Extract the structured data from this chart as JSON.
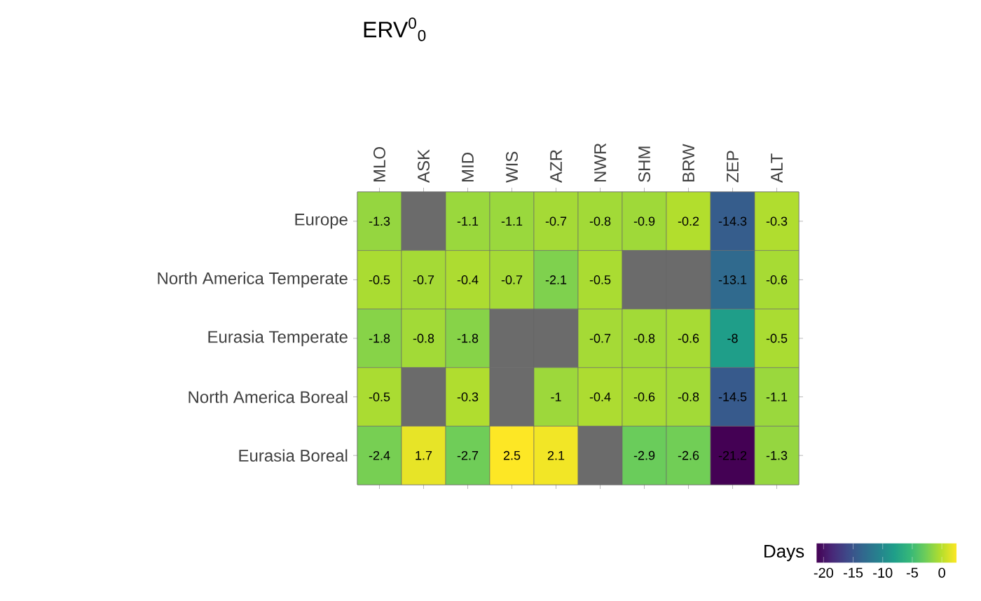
{
  "chart_data": {
    "type": "heatmap",
    "title": "ERV$^{0}$$_{0}$",
    "clabel": "Days",
    "categories": [
      "MLO",
      "ASK",
      "MID",
      "WIS",
      "AZR",
      "NWR",
      "SHM",
      "BRW",
      "ZEP",
      "ALT"
    ],
    "y_categories": [
      "Europe",
      "North America Temperate",
      "Eurasia Temperate",
      "North America Boreal",
      "Eurasia Boreal"
    ],
    "cells": [
      [
        -1.3,
        null,
        -1.1,
        -1.1,
        -0.7,
        -0.8,
        -0.9,
        -0.2,
        -14.3,
        -0.3
      ],
      [
        -0.5,
        -0.7,
        -0.4,
        -0.7,
        -2.1,
        -0.5,
        null,
        null,
        -13.1,
        -0.6
      ],
      [
        -1.8,
        -0.8,
        -1.8,
        null,
        null,
        -0.7,
        -0.8,
        -0.6,
        -8,
        -0.5
      ],
      [
        -0.5,
        null,
        -0.3,
        null,
        -1,
        -0.4,
        -0.6,
        -0.8,
        -14.5,
        -1.1
      ],
      [
        -2.4,
        1.7,
        -2.7,
        2.5,
        2.1,
        null,
        -2.9,
        -2.6,
        -21.2,
        -1.3
      ]
    ],
    "data_labels": true,
    "clim": [
      -21.2,
      2.5
    ],
    "cticks": [
      -20,
      -15,
      -10,
      -5,
      0
    ]
  }
}
